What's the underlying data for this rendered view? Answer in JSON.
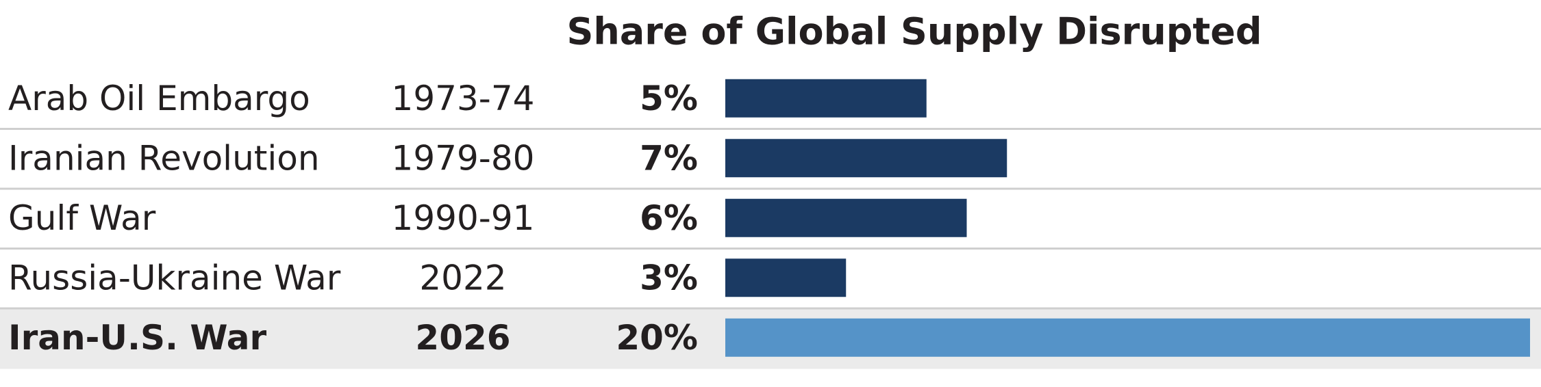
{
  "chart_data": {
    "type": "bar",
    "orientation": "horizontal",
    "title": "Share of Global Supply Disrupted",
    "categories": [
      "Arab Oil Embargo",
      "Iranian Revolution",
      "Gulf War",
      "Russia-Ukraine War",
      "Iran-U.S. War"
    ],
    "periods": [
      "1973-74",
      "1979-80",
      "1990-91",
      "2022",
      "2026"
    ],
    "values": [
      5,
      7,
      6,
      3,
      20
    ],
    "value_labels": [
      "5%",
      "7%",
      "6%",
      "3%",
      "20%"
    ],
    "colors": [
      "#1b3a63",
      "#1b3a63",
      "#1b3a63",
      "#1b3a63",
      "#5593c8"
    ],
    "highlight_row": 4,
    "xlim": [
      0,
      20
    ]
  }
}
